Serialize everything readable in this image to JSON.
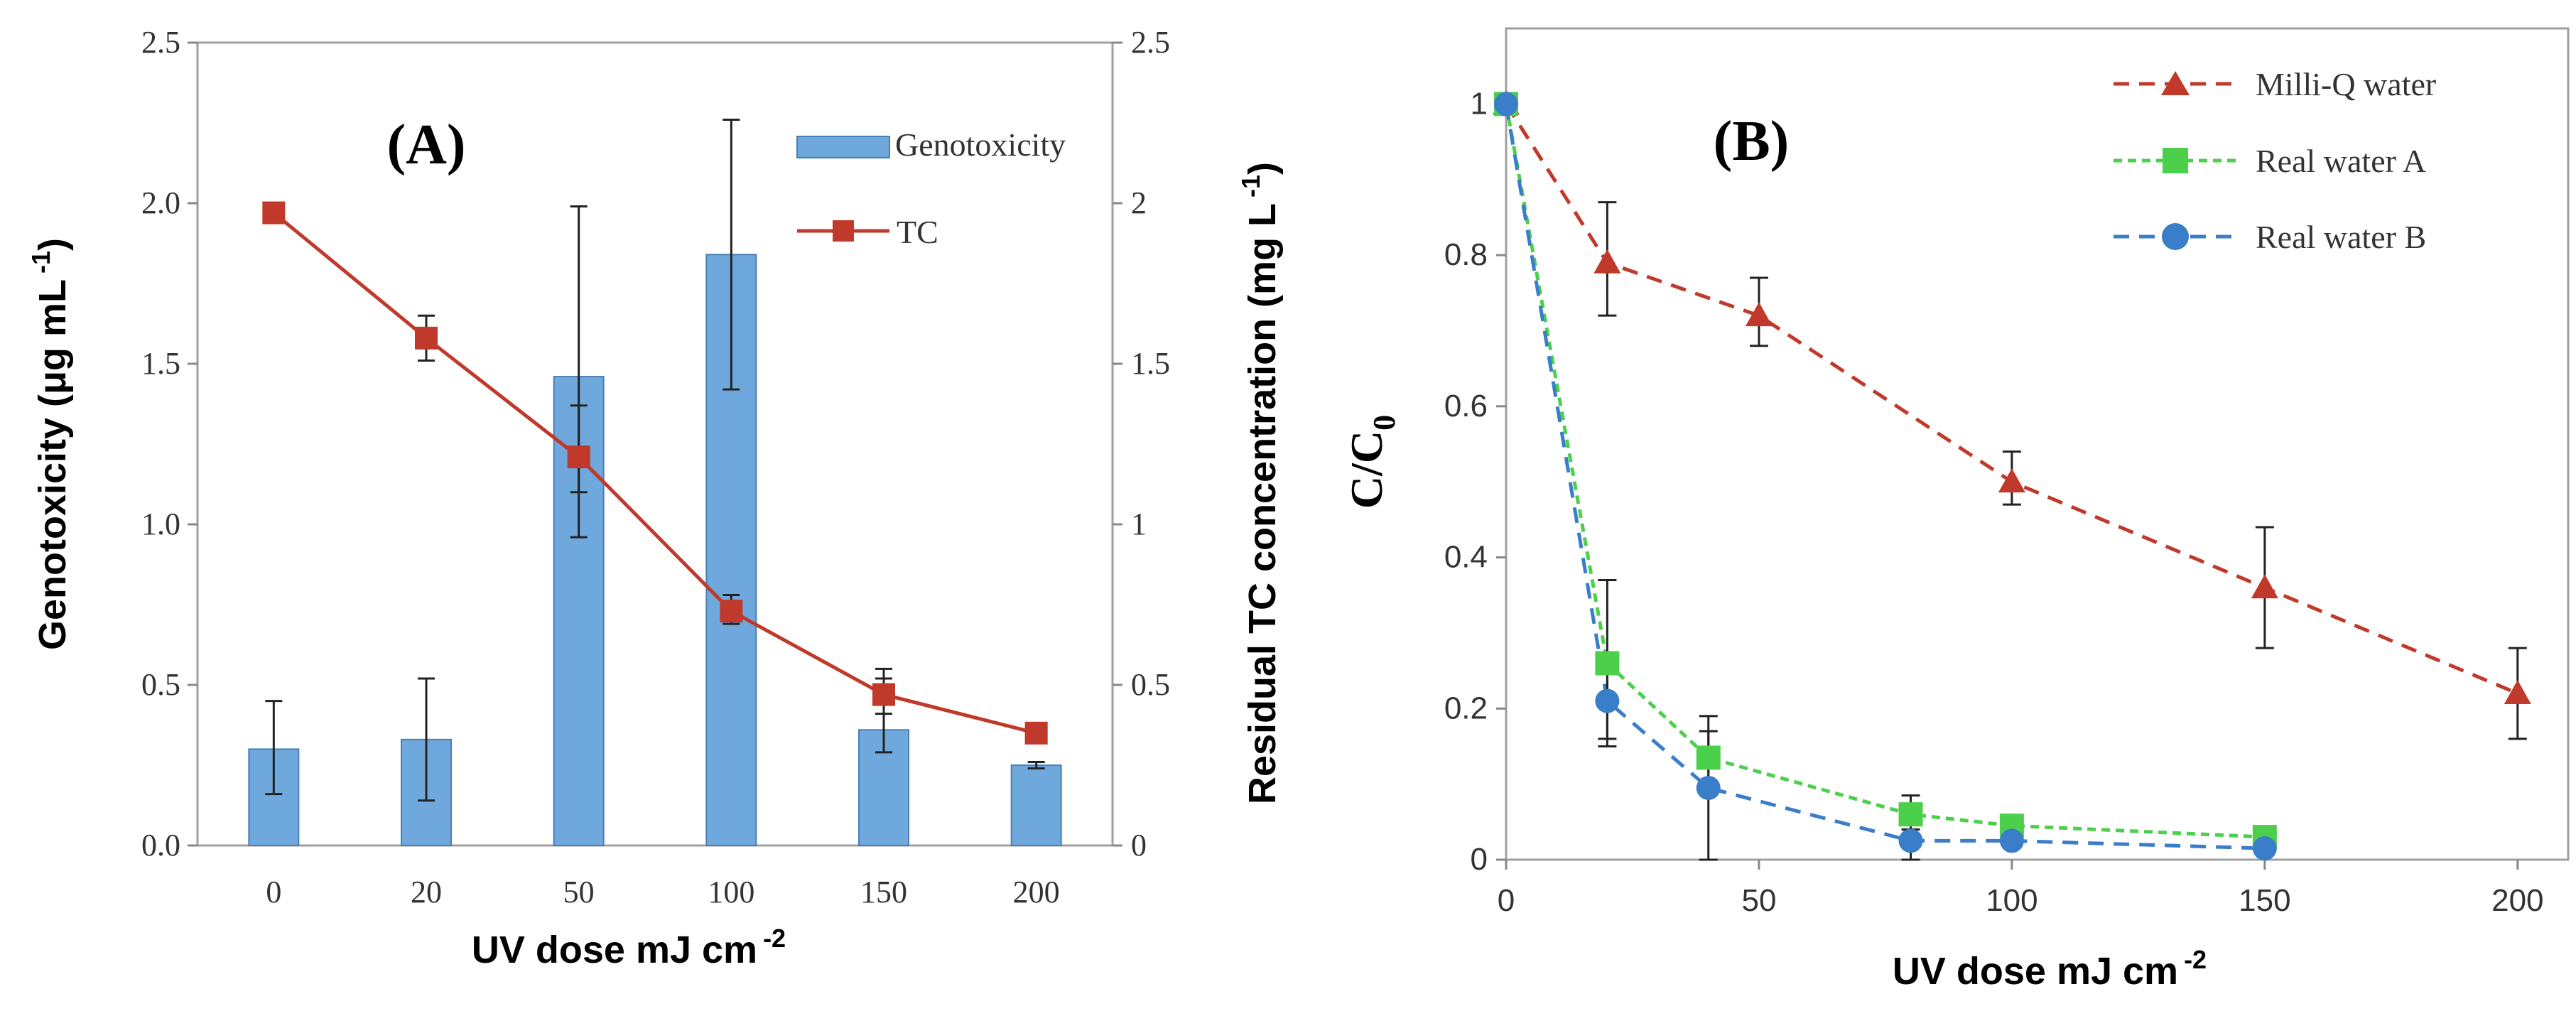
{
  "chart_data": [
    {
      "id": "A",
      "type": "bar",
      "panel_label": "(A)",
      "xlabel_main": "UV dose mJ cm",
      "xlabel_exp": "-2",
      "ylabel_left_main": "Genotoxicity (μg mL",
      "ylabel_left_exp": "-1",
      "ylabel_left_close": ")",
      "ylabel_right_main": "Residual TC concentration (mg L",
      "ylabel_right_exp": "-1",
      "ylabel_right_close": ")",
      "categories": [
        "0",
        "20",
        "50",
        "100",
        "150",
        "200"
      ],
      "ylim_left": [
        0,
        2.5
      ],
      "yticks_left": [
        "0.0",
        "0.5",
        "1.0",
        "1.5",
        "2.0",
        "2.5"
      ],
      "ylim_right": [
        0,
        2.5
      ],
      "yticks_right": [
        "0",
        "0.5",
        "1",
        "1.5",
        "2",
        "2.5"
      ],
      "legend": {
        "position": "top-right",
        "entries": [
          "Genotoxicity",
          "TC"
        ]
      },
      "series": [
        {
          "name": "Genotoxicity",
          "kind": "bar",
          "axis": "left",
          "color": "#6fa8dc",
          "edge_color": "#4a7fb4",
          "values": [
            0.3,
            0.33,
            1.46,
            1.84,
            0.36,
            0.25
          ],
          "err_low": [
            0.16,
            0.14,
            0.96,
            1.42,
            0.29,
            0.24
          ],
          "err_high": [
            0.45,
            0.52,
            1.99,
            2.26,
            0.55,
            0.26
          ]
        },
        {
          "name": "TC",
          "kind": "line",
          "axis": "right",
          "color": "#c0392b",
          "values": [
            1.97,
            1.58,
            1.21,
            0.73,
            0.47,
            0.35
          ],
          "err_low": [
            1.97,
            1.51,
            1.1,
            0.69,
            0.41,
            0.35
          ],
          "err_high": [
            1.97,
            1.65,
            1.37,
            0.78,
            0.52,
            0.35
          ]
        }
      ]
    },
    {
      "id": "B",
      "type": "line",
      "panel_label": "(B)",
      "xlabel_main": "UV dose mJ cm",
      "xlabel_exp": "-2",
      "ylabel_main": "C/C",
      "ylabel_sub": "0",
      "xlim": [
        0,
        210
      ],
      "xticks": [
        0,
        50,
        100,
        150,
        200
      ],
      "ylim": [
        0,
        1.1
      ],
      "yticks": [
        "0",
        "0.2",
        "0.4",
        "0.6",
        "0.8",
        "1"
      ],
      "legend": {
        "position": "top-right",
        "entries": [
          "Milli-Q water",
          "Real water A",
          "Real water B"
        ]
      },
      "series": [
        {
          "name": "Milli-Q water",
          "color": "#c0392b",
          "marker": "triangle",
          "x": [
            0,
            20,
            50,
            100,
            150,
            200
          ],
          "y": [
            1.0,
            0.79,
            0.72,
            0.5,
            0.36,
            0.22
          ],
          "err_low": [
            1.0,
            0.72,
            0.68,
            0.47,
            0.28,
            0.16
          ],
          "err_high": [
            1.0,
            0.87,
            0.77,
            0.54,
            0.44,
            0.28
          ]
        },
        {
          "name": "Real water A",
          "color": "#4cd04c",
          "marker": "square",
          "x": [
            0,
            20,
            40,
            80,
            100,
            150
          ],
          "y": [
            1.0,
            0.26,
            0.135,
            0.06,
            0.045,
            0.03
          ],
          "err_low": [
            1.0,
            0.15,
            0.1,
            0.04,
            0.04,
            0.03
          ],
          "err_high": [
            1.0,
            0.37,
            0.19,
            0.085,
            0.05,
            0.03
          ]
        },
        {
          "name": "Real water B",
          "color": "#3a7dc9",
          "marker": "circle",
          "x": [
            0,
            20,
            40,
            80,
            100,
            150
          ],
          "y": [
            1.0,
            0.21,
            0.095,
            0.025,
            0.025,
            0.015
          ],
          "err_low": [
            1.0,
            0.16,
            0.0,
            0.0,
            0.02,
            0.01
          ],
          "err_high": [
            1.0,
            0.26,
            0.17,
            0.07,
            0.03,
            0.02
          ]
        }
      ]
    }
  ]
}
